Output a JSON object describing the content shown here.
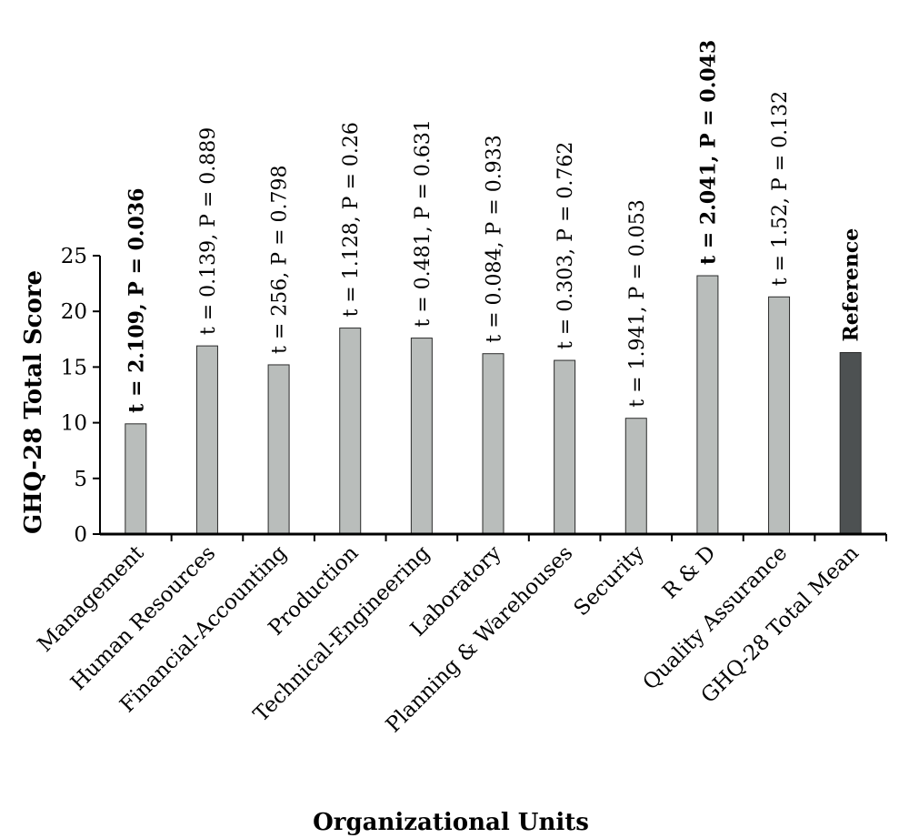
{
  "chart_data": {
    "type": "bar",
    "title": "",
    "xlabel": "Organizational Units",
    "ylabel": "GHQ-28 Total Score",
    "ylim": [
      0,
      25
    ],
    "yticks": [
      0,
      5,
      10,
      15,
      20,
      25
    ],
    "grid": false,
    "legend": "none",
    "categories": [
      "Management",
      "Human Resources",
      "Financial-Accounting",
      "Production",
      "Technical-Engineering",
      "Laboratory",
      "Planning & Warehouses",
      "Security",
      "R & D",
      "Quality Assurance",
      "GHQ-28 Total Mean"
    ],
    "values": [
      9.9,
      16.9,
      15.2,
      18.5,
      17.6,
      16.2,
      15.6,
      10.4,
      23.2,
      21.3,
      16.3
    ],
    "data_labels": [
      "t = 2.109, P = 0.036",
      "t = 0.139, P = 0.889",
      "t = 256, P = 0.798",
      "t = 1.128, P = 0.26",
      "t = 0.481, P = 0.631",
      "t = 0.084, P = 0.933",
      "t = 0.303, P = 0.762",
      "t = 1.941, P = 0.053",
      "t = 2.041, P = 0.043",
      "t = 1.52, P = 0.132",
      "Reference"
    ],
    "label_bold": [
      true,
      false,
      false,
      false,
      false,
      false,
      false,
      false,
      true,
      false,
      true
    ],
    "colors": {
      "bar": "#b9bdbb",
      "reference_bar": "#4d5152",
      "bar_stroke": "#2a2a2a",
      "axis": "#000000"
    }
  }
}
